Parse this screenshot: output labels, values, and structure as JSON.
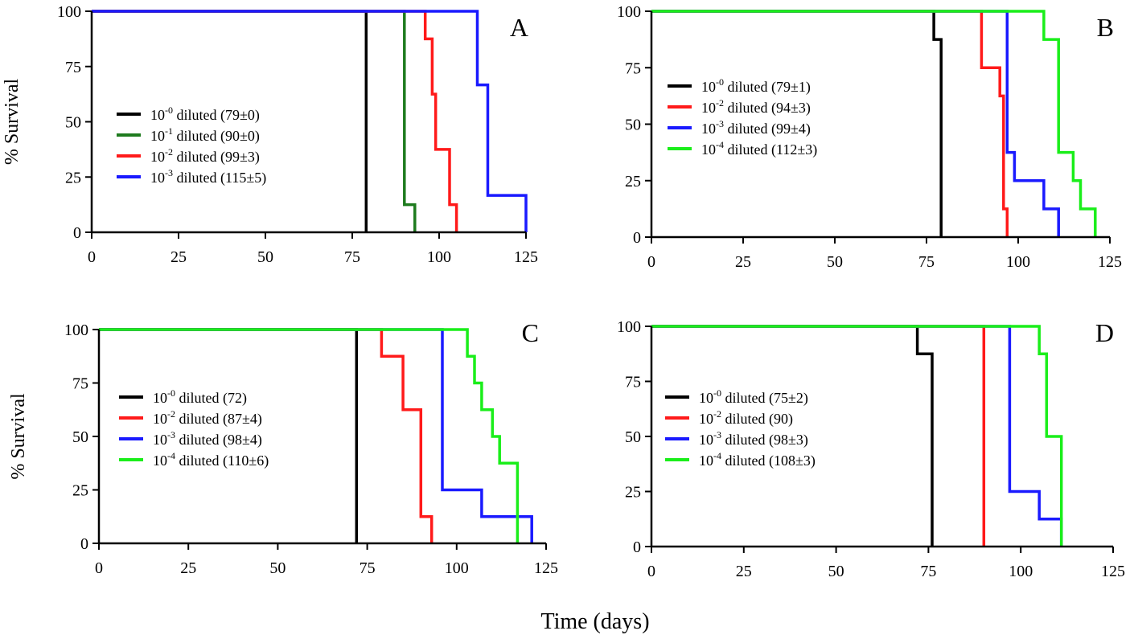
{
  "figure": {
    "xlabel": "Time (days)",
    "ylabel": "% Survival"
  },
  "chart_data": [
    {
      "type": "line",
      "step": true,
      "panel": "A",
      "xlim": [
        0,
        125
      ],
      "ylim": [
        0,
        100
      ],
      "xticks": [
        "0",
        "25",
        "50",
        "75",
        "100",
        "125"
      ],
      "yticks": [
        "0",
        "25",
        "50",
        "75",
        "100"
      ],
      "ylabel": "% Survival",
      "legend_position": "center-left",
      "series": [
        {
          "name": "10-0 diluted (79±0)",
          "exp": "-0",
          "base": "10",
          "rest": " diluted (79±0)",
          "color": "#000000",
          "x": [
            0,
            79,
            79
          ],
          "y": [
            100,
            100,
            0
          ]
        },
        {
          "name": "10-1 diluted (90±0)",
          "exp": "-1",
          "base": "10",
          "rest": " diluted (90±0)",
          "color": "#1e7b1e",
          "x": [
            0,
            90,
            90,
            93,
            93
          ],
          "y": [
            100,
            100,
            12.5,
            12.5,
            0
          ]
        },
        {
          "name": "10-2 diluted (99±3)",
          "exp": "-2",
          "base": "10",
          "rest": " diluted (99±3)",
          "color": "#ff1a1a",
          "x": [
            0,
            96,
            96,
            98,
            98,
            99,
            99,
            103,
            103,
            105,
            105
          ],
          "y": [
            100,
            100,
            87.5,
            87.5,
            62.5,
            62.5,
            37.5,
            37.5,
            12.5,
            12.5,
            0
          ]
        },
        {
          "name": "10-3 diluted (115±5)",
          "exp": "-3",
          "base": "10",
          "rest": " diluted (115±5)",
          "color": "#1a1aff",
          "x": [
            0,
            111,
            111,
            114,
            114,
            125,
            125
          ],
          "y": [
            100,
            100,
            66.7,
            66.7,
            16.7,
            16.7,
            0
          ]
        }
      ]
    },
    {
      "type": "line",
      "step": true,
      "panel": "B",
      "xlim": [
        0,
        125
      ],
      "ylim": [
        0,
        100
      ],
      "xticks": [
        "0",
        "25",
        "50",
        "75",
        "100",
        "125"
      ],
      "yticks": [
        "0",
        "25",
        "50",
        "75",
        "100"
      ],
      "ylabel": "",
      "legend_position": "center-left",
      "series": [
        {
          "name": "10-0 diluted (79±1)",
          "exp": "-0",
          "base": "10",
          "rest": " diluted (79±1)",
          "color": "#000000",
          "x": [
            0,
            77,
            77,
            79,
            79
          ],
          "y": [
            100,
            100,
            87.5,
            87.5,
            0
          ]
        },
        {
          "name": "10-2 diluted (94±3)",
          "exp": "-2",
          "base": "10",
          "rest": " diluted (94±3)",
          "color": "#ff1a1a",
          "x": [
            0,
            90,
            90,
            95,
            95,
            96,
            96,
            97,
            97
          ],
          "y": [
            100,
            100,
            75,
            75,
            62.5,
            62.5,
            12.5,
            12.5,
            0
          ]
        },
        {
          "name": "10-3 diluted (99±4)",
          "exp": "-3",
          "base": "10",
          "rest": " diluted (99±4)",
          "color": "#1a1aff",
          "x": [
            0,
            97,
            97,
            99,
            99,
            107,
            107,
            111,
            111
          ],
          "y": [
            100,
            100,
            37.5,
            37.5,
            25,
            25,
            12.5,
            12.5,
            0
          ]
        },
        {
          "name": "10-4 diluted (112±3)",
          "exp": "-4",
          "base": "10",
          "rest": " diluted (112±3)",
          "color": "#1aee1a",
          "x": [
            0,
            107,
            107,
            111,
            111,
            115,
            115,
            117,
            117,
            121,
            121
          ],
          "y": [
            100,
            100,
            87.5,
            87.5,
            37.5,
            37.5,
            25,
            25,
            12.5,
            12.5,
            0
          ]
        }
      ]
    },
    {
      "type": "line",
      "step": true,
      "panel": "C",
      "xlim": [
        0,
        125
      ],
      "ylim": [
        0,
        100
      ],
      "xticks": [
        "0",
        "25",
        "50",
        "75",
        "100",
        "125"
      ],
      "yticks": [
        "0",
        "25",
        "50",
        "75",
        "100"
      ],
      "ylabel": "% Survival",
      "legend_position": "center-left",
      "series": [
        {
          "name": "10-0 diluted (72)",
          "exp": "-0",
          "base": "10",
          "rest": " diluted (72)",
          "color": "#000000",
          "x": [
            0,
            72,
            72
          ],
          "y": [
            100,
            100,
            0
          ]
        },
        {
          "name": "10-2 diluted (87±4)",
          "exp": "-2",
          "base": "10",
          "rest": " diluted (87±4)",
          "color": "#ff1a1a",
          "x": [
            0,
            79,
            79,
            85,
            85,
            90,
            90,
            93,
            93
          ],
          "y": [
            100,
            100,
            87.5,
            87.5,
            62.5,
            62.5,
            12.5,
            12.5,
            0
          ]
        },
        {
          "name": "10-3 diluted (98±4)",
          "exp": "-3",
          "base": "10",
          "rest": " diluted (98±4)",
          "color": "#1a1aff",
          "x": [
            0,
            96,
            96,
            107,
            107,
            121,
            121
          ],
          "y": [
            100,
            100,
            25,
            25,
            12.5,
            12.5,
            0
          ]
        },
        {
          "name": "10-4 diluted (110±6)",
          "exp": "-4",
          "base": "10",
          "rest": " diluted (110±6)",
          "color": "#1aee1a",
          "x": [
            0,
            103,
            103,
            105,
            105,
            107,
            107,
            110,
            110,
            112,
            112,
            117,
            117
          ],
          "y": [
            100,
            100,
            87.5,
            87.5,
            75,
            75,
            62.5,
            62.5,
            50,
            50,
            37.5,
            37.5,
            0
          ]
        }
      ]
    },
    {
      "type": "line",
      "step": true,
      "panel": "D",
      "xlim": [
        0,
        125
      ],
      "ylim": [
        0,
        100
      ],
      "xticks": [
        "0",
        "25",
        "50",
        "75",
        "100",
        "125"
      ],
      "yticks": [
        "0",
        "25",
        "50",
        "75",
        "100"
      ],
      "ylabel": "",
      "legend_position": "center-left",
      "series": [
        {
          "name": "10-0 diluted (75±2)",
          "exp": "-0",
          "base": "10",
          "rest": " diluted (75±2)",
          "color": "#000000",
          "x": [
            0,
            72,
            72,
            76,
            76
          ],
          "y": [
            100,
            100,
            87.5,
            87.5,
            0
          ]
        },
        {
          "name": "10-2 diluted (90)",
          "exp": "-2",
          "base": "10",
          "rest": " diluted (90)",
          "color": "#ff1a1a",
          "x": [
            0,
            90,
            90
          ],
          "y": [
            100,
            100,
            0
          ]
        },
        {
          "name": "10-3 diluted (98±3)",
          "exp": "-3",
          "base": "10",
          "rest": " diluted (98±3)",
          "color": "#1a1aff",
          "x": [
            0,
            97,
            97,
            105,
            105,
            111,
            111
          ],
          "y": [
            100,
            100,
            25,
            25,
            12.5,
            12.5,
            0
          ]
        },
        {
          "name": "10-4 diluted (108±3)",
          "exp": "-4",
          "base": "10",
          "rest": " diluted (108±3)",
          "color": "#1aee1a",
          "x": [
            0,
            105,
            105,
            107,
            107,
            111,
            111
          ],
          "y": [
            100,
            100,
            87.5,
            87.5,
            50,
            50,
            0
          ]
        }
      ]
    }
  ]
}
